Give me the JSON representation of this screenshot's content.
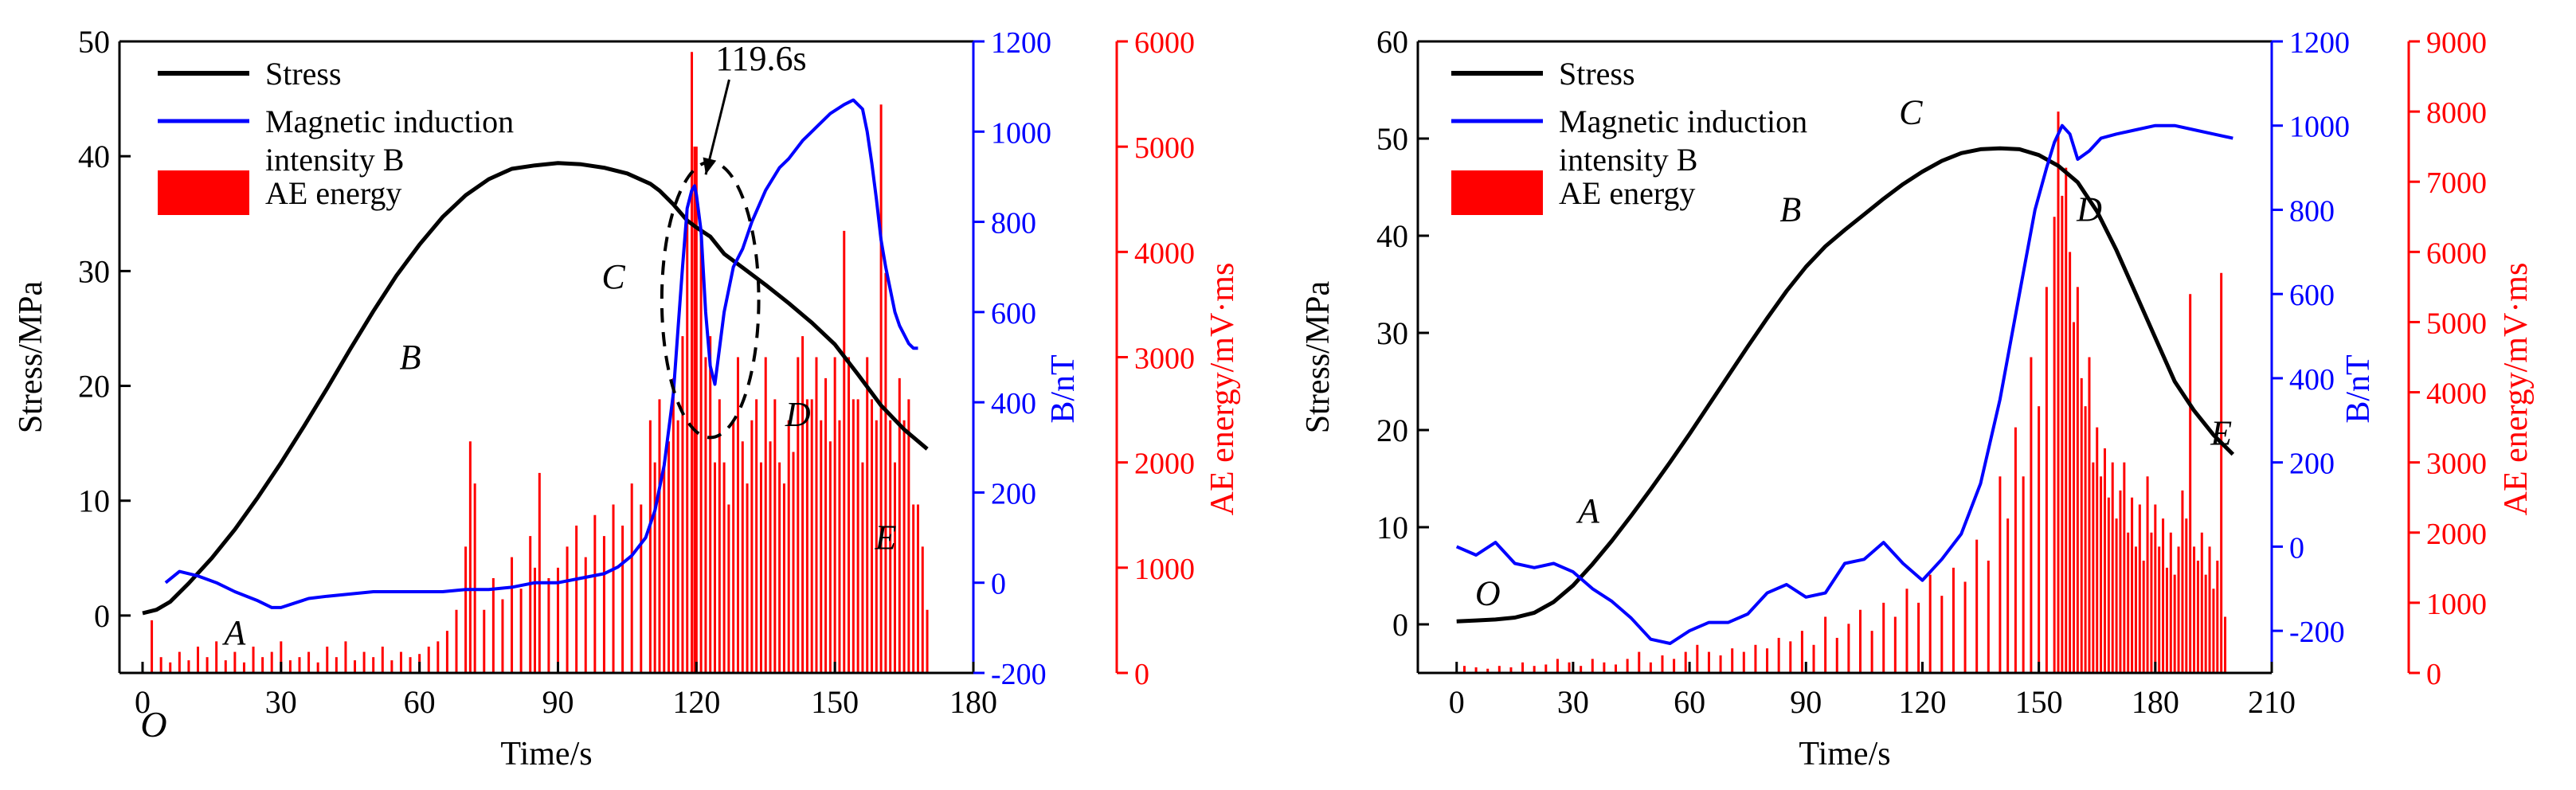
{
  "chart_data": [
    {
      "type": "line",
      "title": "",
      "xlabel": "Time/s",
      "ylabel_left": "Stress/MPa",
      "ylabel_right_1": "B/nT",
      "ylabel_right_2": "AE energy/mV·ms",
      "origin_label": "O",
      "x_ticks": [
        "0",
        "30",
        "60",
        "90",
        "120",
        "150",
        "180"
      ],
      "stress_ticks": [
        "0",
        "10",
        "20",
        "30",
        "40",
        "50"
      ],
      "b_ticks": [
        "-200",
        "0",
        "200",
        "400",
        "600",
        "800",
        "1000",
        "1200"
      ],
      "ae_ticks": [
        "0",
        "1000",
        "2000",
        "3000",
        "4000",
        "5000",
        "6000"
      ],
      "xlim": [
        -5,
        180
      ],
      "stress_lim": [
        -5,
        50
      ],
      "b_lim": [
        -200,
        1200
      ],
      "ae_lim": [
        0,
        6000
      ],
      "grid": false,
      "legend": {
        "position": "top-left",
        "entries": [
          "Stress",
          "Magnetic induction intensity B",
          "AE energy"
        ]
      },
      "annotations": [
        {
          "text": "119.6s",
          "at": [
            119.6,
            880
          ],
          "axis": "b",
          "text_pos": [
            134,
            47.5
          ]
        },
        {
          "text": "A",
          "at": [
            20,
            -2.5
          ]
        },
        {
          "text": "B",
          "at": [
            58,
            21.5
          ]
        },
        {
          "text": "C",
          "at": [
            102,
            28.5
          ]
        },
        {
          "text": "D",
          "at": [
            142,
            16.5
          ]
        },
        {
          "text": "E",
          "at": [
            161,
            5.8
          ]
        }
      ],
      "ellipse": {
        "cx": 123,
        "cy": 27.5,
        "rx": 10.5,
        "ry": 12
      },
      "series": [
        {
          "name": "Stress",
          "axis": "stress",
          "color": "#000000",
          "x": [
            0,
            3,
            6,
            10,
            15,
            20,
            25,
            30,
            35,
            40,
            45,
            50,
            55,
            60,
            65,
            70,
            75,
            80,
            85,
            90,
            95,
            100,
            105,
            110,
            112,
            115,
            118,
            120,
            123,
            126,
            130,
            135,
            140,
            145,
            150,
            155,
            160,
            165,
            170
          ],
          "y": [
            0.2,
            0.5,
            1.2,
            2.8,
            5.0,
            7.5,
            10.3,
            13.3,
            16.5,
            19.8,
            23.2,
            26.5,
            29.6,
            32.3,
            34.7,
            36.6,
            38.0,
            38.9,
            39.2,
            39.4,
            39.3,
            39.0,
            38.5,
            37.6,
            37.0,
            35.8,
            34.4,
            33.8,
            33.0,
            31.5,
            30.3,
            28.8,
            27.2,
            25.5,
            23.6,
            21.0,
            18.3,
            16.2,
            14.5
          ]
        },
        {
          "name": "Magnetic induction intensity B",
          "axis": "b",
          "color": "#0000ff",
          "x": [
            5,
            8,
            12,
            16,
            20,
            25,
            28,
            30,
            33,
            36,
            40,
            45,
            50,
            55,
            60,
            65,
            70,
            75,
            80,
            85,
            90,
            95,
            100,
            103,
            106,
            109,
            111,
            113,
            115,
            116,
            117,
            118,
            119,
            119.6,
            120,
            121,
            122,
            123,
            124,
            125,
            126,
            127,
            128,
            130,
            132,
            135,
            138,
            140,
            143,
            146,
            149,
            152,
            154,
            156,
            157,
            158,
            159,
            160,
            161,
            162,
            163,
            164,
            165,
            166,
            167,
            168
          ],
          "y": [
            0,
            25,
            15,
            0,
            -20,
            -40,
            -55,
            -55,
            -45,
            -35,
            -30,
            -25,
            -20,
            -20,
            -20,
            -20,
            -15,
            -15,
            -10,
            0,
            0,
            10,
            20,
            35,
            60,
            100,
            160,
            260,
            420,
            560,
            700,
            830,
            870,
            880,
            860,
            780,
            600,
            480,
            440,
            520,
            600,
            650,
            700,
            740,
            800,
            870,
            920,
            940,
            980,
            1010,
            1040,
            1060,
            1070,
            1050,
            1000,
            930,
            850,
            760,
            700,
            650,
            600,
            570,
            550,
            530,
            520,
            520
          ]
        },
        {
          "name": "AE energy",
          "axis": "ae",
          "color": "#ff0000",
          "type": "bar",
          "x": [
            2,
            4,
            6,
            8,
            10,
            12,
            14,
            16,
            18,
            20,
            22,
            24,
            26,
            28,
            30,
            32,
            34,
            36,
            38,
            40,
            42,
            44,
            46,
            48,
            50,
            52,
            54,
            56,
            58,
            60,
            62,
            64,
            66,
            68,
            70,
            71,
            72,
            74,
            76,
            78,
            80,
            82,
            84,
            85,
            86,
            88,
            90,
            92,
            94,
            96,
            98,
            100,
            102,
            104,
            106,
            108,
            110,
            111,
            112,
            113,
            114,
            115,
            116,
            117,
            118,
            119,
            119.6,
            120,
            121,
            122,
            123,
            124,
            125,
            126,
            127,
            128,
            129,
            130,
            131,
            132,
            133,
            134,
            135,
            136,
            137,
            138,
            139,
            140,
            141,
            142,
            143,
            144,
            145,
            146,
            147,
            148,
            149,
            150,
            151,
            152,
            153,
            154,
            155,
            156,
            157,
            158,
            159,
            160,
            161,
            162,
            163,
            164,
            165,
            166,
            167,
            168,
            169,
            170
          ],
          "y": [
            500,
            150,
            100,
            200,
            120,
            250,
            150,
            300,
            120,
            200,
            100,
            250,
            150,
            200,
            300,
            120,
            150,
            200,
            100,
            250,
            150,
            300,
            120,
            200,
            150,
            250,
            120,
            200,
            150,
            180,
            250,
            300,
            400,
            600,
            1200,
            2200,
            1800,
            600,
            900,
            700,
            1100,
            800,
            1300,
            1000,
            1900,
            900,
            1000,
            1200,
            1400,
            1100,
            1500,
            1300,
            1600,
            1400,
            1800,
            1600,
            2400,
            2000,
            2600,
            2000,
            2200,
            2800,
            2400,
            3200,
            4400,
            5900,
            5000,
            5000,
            4200,
            3000,
            3200,
            2000,
            2600,
            2000,
            1600,
            2400,
            3000,
            2200,
            1800,
            2400,
            2600,
            2000,
            3000,
            2200,
            2600,
            2000,
            1800,
            2400,
            2100,
            3000,
            3200,
            2600,
            2600,
            3000,
            2400,
            2800,
            2200,
            3000,
            2400,
            4200,
            3000,
            2600,
            2600,
            2000,
            3000,
            2600,
            2400,
            5400,
            3800,
            2400,
            2000,
            2800,
            2400,
            2600,
            1600,
            1600,
            1200,
            600
          ]
        }
      ]
    },
    {
      "type": "line",
      "title": "",
      "xlabel": "Time/s",
      "ylabel_left": "Stress/MPa",
      "ylabel_right_1": "B/nT",
      "ylabel_right_2": "AE energy/mV·ms",
      "x_ticks": [
        "0",
        "30",
        "60",
        "90",
        "120",
        "150",
        "180",
        "210"
      ],
      "stress_ticks": [
        "0",
        "10",
        "20",
        "30",
        "40",
        "50",
        "60"
      ],
      "b_ticks": [
        "-200",
        "0",
        "200",
        "400",
        "600",
        "800",
        "1000",
        "1200"
      ],
      "ae_ticks": [
        "0",
        "1000",
        "2000",
        "3000",
        "4000",
        "5000",
        "6000",
        "7000",
        "8000",
        "9000"
      ],
      "xlim": [
        -10,
        210
      ],
      "stress_lim": [
        -5,
        60
      ],
      "b_lim": [
        -300,
        1200
      ],
      "ae_lim": [
        0,
        9000
      ],
      "grid": false,
      "legend": {
        "position": "top-left",
        "entries": [
          "Stress",
          "Magnetic induction intensity B",
          "AE energy"
        ]
      },
      "annotations": [
        {
          "text": "O",
          "at": [
            8,
            2.0
          ]
        },
        {
          "text": "A",
          "at": [
            34,
            10.5
          ]
        },
        {
          "text": "B",
          "at": [
            86,
            41.5
          ]
        },
        {
          "text": "C",
          "at": [
            117,
            51.5
          ]
        },
        {
          "text": "D",
          "at": [
            163,
            41.5
          ]
        },
        {
          "text": "E",
          "at": [
            197,
            18.5
          ]
        }
      ],
      "series": [
        {
          "name": "Stress",
          "axis": "stress",
          "color": "#000000",
          "x": [
            0,
            5,
            10,
            15,
            20,
            25,
            30,
            35,
            40,
            45,
            50,
            55,
            60,
            65,
            70,
            75,
            80,
            85,
            90,
            95,
            100,
            105,
            110,
            115,
            120,
            125,
            130,
            135,
            140,
            145,
            150,
            155,
            160,
            165,
            170,
            175,
            180,
            185,
            190,
            195,
            200
          ],
          "y": [
            0.3,
            0.4,
            0.5,
            0.7,
            1.2,
            2.3,
            4.0,
            6.2,
            8.6,
            11.2,
            13.9,
            16.7,
            19.6,
            22.6,
            25.6,
            28.6,
            31.5,
            34.3,
            36.8,
            38.9,
            40.6,
            42.2,
            43.8,
            45.3,
            46.6,
            47.7,
            48.5,
            48.9,
            49.0,
            48.9,
            48.3,
            47.2,
            45.5,
            42.5,
            38.5,
            34.0,
            29.5,
            25.0,
            22.0,
            19.5,
            17.5
          ]
        },
        {
          "name": "Magnetic induction intensity B",
          "axis": "b",
          "color": "#0000ff",
          "x": [
            0,
            5,
            10,
            15,
            20,
            25,
            30,
            35,
            40,
            45,
            50,
            55,
            60,
            65,
            70,
            75,
            80,
            85,
            90,
            95,
            100,
            105,
            110,
            115,
            120,
            125,
            130,
            135,
            140,
            143,
            146,
            149,
            152,
            154,
            156,
            158,
            160,
            163,
            166,
            170,
            175,
            180,
            185,
            190,
            195,
            200
          ],
          "y": [
            0,
            -20,
            10,
            -40,
            -50,
            -40,
            -60,
            -100,
            -130,
            -170,
            -220,
            -230,
            -200,
            -180,
            -180,
            -160,
            -110,
            -90,
            -120,
            -110,
            -40,
            -30,
            10,
            -40,
            -80,
            -30,
            30,
            150,
            350,
            500,
            650,
            800,
            900,
            960,
            1000,
            980,
            920,
            940,
            970,
            980,
            990,
            1000,
            1000,
            990,
            980,
            970
          ]
        },
        {
          "name": "AE energy",
          "axis": "ae",
          "color": "#ff0000",
          "type": "bar",
          "x": [
            2,
            5,
            8,
            11,
            14,
            17,
            20,
            23,
            26,
            29,
            32,
            35,
            38,
            41,
            44,
            47,
            50,
            53,
            56,
            59,
            62,
            65,
            68,
            71,
            74,
            77,
            80,
            83,
            86,
            89,
            92,
            95,
            98,
            101,
            104,
            107,
            110,
            113,
            116,
            119,
            122,
            125,
            128,
            131,
            134,
            137,
            140,
            142,
            144,
            146,
            148,
            150,
            152,
            154,
            155,
            156,
            157,
            158,
            159,
            160,
            161,
            162,
            163,
            164,
            165,
            166,
            167,
            168,
            169,
            170,
            171,
            172,
            173,
            174,
            175,
            176,
            177,
            178,
            179,
            180,
            181,
            182,
            183,
            184,
            185,
            186,
            187,
            188,
            189,
            190,
            191,
            192,
            193,
            194,
            195,
            196,
            197,
            198
          ],
          "y": [
            100,
            80,
            60,
            100,
            80,
            150,
            100,
            120,
            200,
            150,
            100,
            200,
            150,
            120,
            200,
            300,
            150,
            250,
            200,
            300,
            400,
            300,
            250,
            350,
            300,
            400,
            350,
            500,
            450,
            600,
            400,
            800,
            500,
            700,
            900,
            600,
            1000,
            800,
            1200,
            1000,
            1400,
            1100,
            1500,
            1300,
            1900,
            1600,
            2800,
            2200,
            3500,
            2800,
            4500,
            3800,
            5500,
            6500,
            8000,
            6800,
            7200,
            6000,
            5000,
            5500,
            4200,
            3800,
            4500,
            3000,
            3500,
            2800,
            3200,
            2500,
            3000,
            2200,
            2600,
            3000,
            2000,
            2500,
            1800,
            2400,
            1600,
            2800,
            2000,
            2400,
            1800,
            2200,
            1500,
            2000,
            1400,
            1800,
            2600,
            2200,
            5400,
            1800,
            1600,
            2000,
            1400,
            1800,
            1200,
            1600,
            5700,
            800
          ]
        }
      ]
    }
  ]
}
